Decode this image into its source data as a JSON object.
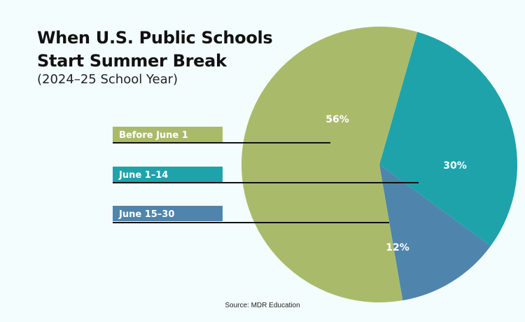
{
  "title_line1": "When U.S. Public Schools",
  "title_line2": "Start Summer Break",
  "subtitle": "(2024–25 School Year)",
  "source": "Source: MDR Education",
  "chart_data": {
    "type": "pie",
    "slices": [
      {
        "label": "Before June 1",
        "value": 56,
        "display": "56%",
        "color": "#a9bb6b"
      },
      {
        "label": "June 1–14",
        "value": 30,
        "display": "30%",
        "color": "#1fa3aa"
      },
      {
        "label": "June 15–30",
        "value": 12,
        "display": "12%",
        "color": "#4f85ac"
      }
    ],
    "title": "When U.S. Public Schools Start Summer Break",
    "subtitle": "(2024–25 School Year)",
    "legend": "left"
  }
}
